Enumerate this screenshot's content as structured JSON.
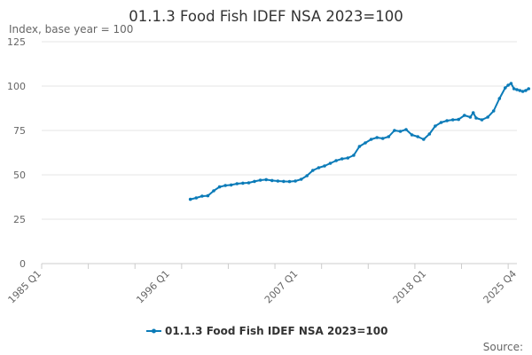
{
  "chart_data": {
    "type": "line",
    "title": "01.1.3 Food Fish IDEF NSA 2023=100",
    "subtitle": "Index, base year = 100",
    "xlabel": "",
    "ylabel": "",
    "ylim": [
      0,
      125
    ],
    "y_ticks": [
      "0",
      "25",
      "50",
      "75",
      "100",
      "125"
    ],
    "x_range": [
      "1985 Q1",
      "2025 Q4"
    ],
    "x_ticks": [
      "1985 Q1",
      "1996 Q1",
      "2007 Q1",
      "2018 Q1",
      "2025 Q4"
    ],
    "grid": true,
    "legend_position": "bottom",
    "source_label": "Source:",
    "color": "#0b7bb8",
    "series": [
      {
        "name": "01.1.3 Food Fish IDEF NSA 2023=100",
        "points": [
          [
            "1997 Q4",
            36.2
          ],
          [
            "1998 Q2",
            37.0
          ],
          [
            "1998 Q4",
            38.0
          ],
          [
            "1999 Q2",
            38.2
          ],
          [
            "1999 Q4",
            41.0
          ],
          [
            "2000 Q2",
            43.2
          ],
          [
            "2000 Q4",
            44.0
          ],
          [
            "2001 Q2",
            44.3
          ],
          [
            "2001 Q4",
            45.0
          ],
          [
            "2002 Q2",
            45.3
          ],
          [
            "2002 Q4",
            45.5
          ],
          [
            "2003 Q2",
            46.3
          ],
          [
            "2003 Q4",
            47.0
          ],
          [
            "2004 Q2",
            47.3
          ],
          [
            "2004 Q4",
            46.8
          ],
          [
            "2005 Q2",
            46.5
          ],
          [
            "2005 Q4",
            46.3
          ],
          [
            "2006 Q2",
            46.2
          ],
          [
            "2006 Q4",
            46.5
          ],
          [
            "2007 Q2",
            47.5
          ],
          [
            "2007 Q4",
            49.5
          ],
          [
            "2008 Q2",
            52.5
          ],
          [
            "2008 Q4",
            54.0
          ],
          [
            "2009 Q2",
            55.0
          ],
          [
            "2009 Q4",
            56.5
          ],
          [
            "2010 Q2",
            58.0
          ],
          [
            "2010 Q4",
            59.0
          ],
          [
            "2011 Q2",
            59.5
          ],
          [
            "2011 Q4",
            61.0
          ],
          [
            "2012 Q2",
            66.0
          ],
          [
            "2012 Q4",
            68.0
          ],
          [
            "2013 Q2",
            70.0
          ],
          [
            "2013 Q4",
            71.0
          ],
          [
            "2014 Q2",
            70.5
          ],
          [
            "2014 Q4",
            71.5
          ],
          [
            "2015 Q2",
            75.0
          ],
          [
            "2015 Q4",
            74.5
          ],
          [
            "2016 Q2",
            75.5
          ],
          [
            "2016 Q4",
            72.5
          ],
          [
            "2017 Q2",
            71.5
          ],
          [
            "2017 Q4",
            70.0
          ],
          [
            "2018 Q2",
            73.0
          ],
          [
            "2018 Q4",
            77.5
          ],
          [
            "2019 Q2",
            79.5
          ],
          [
            "2019 Q4",
            80.5
          ],
          [
            "2020 Q2",
            81.0
          ],
          [
            "2020 Q4",
            81.2
          ],
          [
            "2021 Q2",
            83.5
          ],
          [
            "2021 Q4",
            82.5
          ],
          [
            "2022 Q1",
            85.0
          ],
          [
            "2022 Q2",
            82.0
          ],
          [
            "2022 Q4",
            81.0
          ],
          [
            "2023 Q2",
            82.5
          ],
          [
            "2023 Q4",
            86.0
          ],
          [
            "2024 Q2",
            93.0
          ],
          [
            "2024 Q4",
            99.0
          ],
          [
            "2025 Q1",
            100.5
          ],
          [
            "2025 Q2",
            101.5
          ],
          [
            "2025 Q3",
            98.5
          ],
          [
            "2025 Q4",
            98.0
          ],
          [
            "2026 Q1",
            97.5
          ],
          [
            "2026 Q2",
            97.0
          ],
          [
            "2026 Q3",
            97.5
          ],
          [
            "2026 Q4",
            98.5
          ]
        ]
      }
    ]
  }
}
